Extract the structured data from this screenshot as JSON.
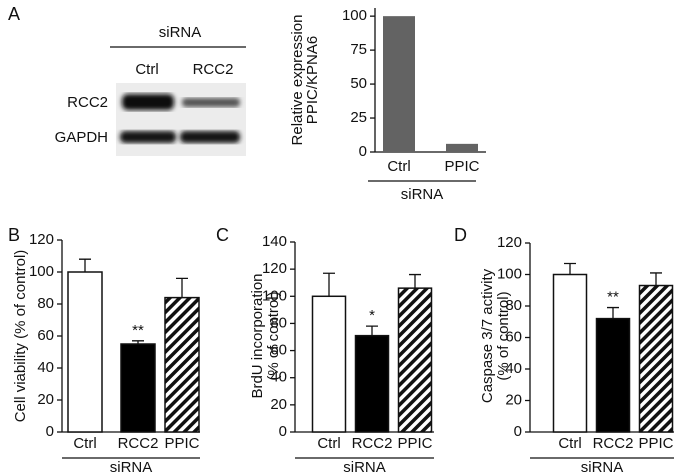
{
  "panel_labels": [
    "A",
    "B",
    "C",
    "D"
  ],
  "blot": {
    "group_label": "siRNA",
    "lanes": [
      "Ctrl",
      "RCC2"
    ],
    "rows": [
      "RCC2",
      "GAPDH"
    ]
  },
  "chart_data": [
    {
      "type": "bar",
      "ylabel": [
        "Relative expression",
        "PPIC/KPNA6"
      ],
      "categories": [
        "Ctrl",
        "PPIC"
      ],
      "values": [
        100,
        6
      ],
      "fills": [
        "#636363",
        "#636363"
      ],
      "ylim": [
        0,
        106
      ],
      "yticks": [
        0,
        25,
        50,
        75,
        100
      ],
      "group_label": "siRNA"
    },
    {
      "type": "bar",
      "ylabel": [
        "Cell viability (% of control)"
      ],
      "categories": [
        "Ctrl",
        "RCC2",
        "PPIC"
      ],
      "values": [
        100,
        55,
        84
      ],
      "errors": [
        8,
        2,
        12
      ],
      "sig_labels": [
        null,
        "**",
        null
      ],
      "fills": [
        "white",
        "black",
        "hatched"
      ],
      "ylim": [
        0,
        120
      ],
      "yticks": [
        0,
        20,
        40,
        60,
        80,
        100,
        120
      ],
      "group_label": "siRNA"
    },
    {
      "type": "bar",
      "ylabel": [
        "BrdU incorporation",
        "(% of control)"
      ],
      "categories": [
        "Ctrl",
        "RCC2",
        "PPIC"
      ],
      "values": [
        100,
        71,
        106
      ],
      "errors": [
        17,
        7,
        10
      ],
      "sig_labels": [
        null,
        "*",
        null
      ],
      "fills": [
        "white",
        "black",
        "hatched"
      ],
      "ylim": [
        0,
        140
      ],
      "yticks": [
        0,
        20,
        40,
        60,
        80,
        100,
        120,
        140
      ],
      "group_label": "siRNA"
    },
    {
      "type": "bar",
      "ylabel": [
        "Caspase 3/7 activity",
        "(% of control)"
      ],
      "categories": [
        "Ctrl",
        "RCC2",
        "PPIC"
      ],
      "values": [
        100,
        72,
        93
      ],
      "errors": [
        7,
        7,
        8
      ],
      "sig_labels": [
        null,
        "**",
        null
      ],
      "fills": [
        "white",
        "black",
        "hatched"
      ],
      "ylim": [
        0,
        120
      ],
      "yticks": [
        0,
        20,
        40,
        60,
        80,
        100,
        120
      ],
      "group_label": "siRNA"
    }
  ]
}
